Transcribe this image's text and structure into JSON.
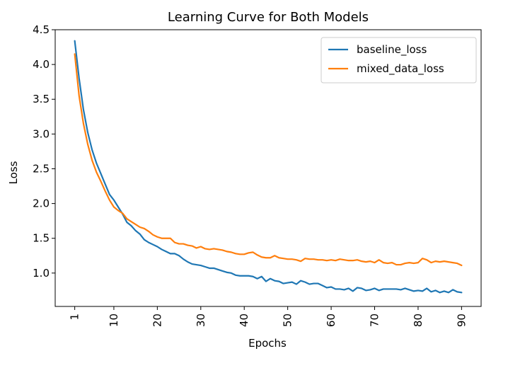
{
  "chart_data": {
    "type": "line",
    "title": "Learning Curve for Both Models",
    "xlabel": "Epochs",
    "ylabel": "Loss",
    "xlim": [
      -3.5,
      94.5
    ],
    "ylim": [
      0.52,
      4.5
    ],
    "xticks": [
      1,
      10,
      20,
      30,
      40,
      50,
      60,
      70,
      80,
      90
    ],
    "yticks": [
      1.0,
      1.5,
      2.0,
      2.5,
      3.0,
      3.5,
      4.0,
      4.5
    ],
    "ytick_labels": [
      "1.0",
      "1.5",
      "2.0",
      "2.5",
      "3.0",
      "3.5",
      "4.0",
      "4.5"
    ],
    "legend_position": "top-right",
    "grid": false,
    "x": [
      1,
      2,
      3,
      4,
      5,
      6,
      7,
      8,
      9,
      10,
      11,
      12,
      13,
      14,
      15,
      16,
      17,
      18,
      19,
      20,
      21,
      22,
      23,
      24,
      25,
      26,
      27,
      28,
      29,
      30,
      31,
      32,
      33,
      34,
      35,
      36,
      37,
      38,
      39,
      40,
      41,
      42,
      43,
      44,
      45,
      46,
      47,
      48,
      49,
      50,
      51,
      52,
      53,
      54,
      55,
      56,
      57,
      58,
      59,
      60,
      61,
      62,
      63,
      64,
      65,
      66,
      67,
      68,
      69,
      70,
      71,
      72,
      73,
      74,
      75,
      76,
      77,
      78,
      79,
      80,
      81,
      82,
      83,
      84,
      85,
      86,
      87,
      88,
      89,
      90
    ],
    "series": [
      {
        "name": "baseline_loss",
        "color": "#1f77b4",
        "values": [
          4.34,
          3.8,
          3.35,
          3.02,
          2.77,
          2.58,
          2.43,
          2.28,
          2.13,
          2.05,
          1.95,
          1.85,
          1.73,
          1.68,
          1.61,
          1.56,
          1.48,
          1.44,
          1.41,
          1.38,
          1.34,
          1.31,
          1.28,
          1.28,
          1.25,
          1.2,
          1.16,
          1.13,
          1.12,
          1.11,
          1.09,
          1.07,
          1.07,
          1.05,
          1.03,
          1.01,
          1.0,
          0.97,
          0.96,
          0.96,
          0.96,
          0.95,
          0.92,
          0.95,
          0.88,
          0.92,
          0.89,
          0.88,
          0.85,
          0.86,
          0.87,
          0.84,
          0.89,
          0.87,
          0.84,
          0.85,
          0.85,
          0.82,
          0.79,
          0.8,
          0.77,
          0.77,
          0.76,
          0.78,
          0.74,
          0.79,
          0.78,
          0.75,
          0.76,
          0.78,
          0.75,
          0.77,
          0.77,
          0.77,
          0.77,
          0.76,
          0.78,
          0.76,
          0.74,
          0.75,
          0.74,
          0.78,
          0.73,
          0.75,
          0.72,
          0.74,
          0.72,
          0.76,
          0.73,
          0.72
        ]
      },
      {
        "name": "mixed_data_loss",
        "color": "#ff7f0e",
        "values": [
          4.15,
          3.55,
          3.15,
          2.85,
          2.62,
          2.45,
          2.32,
          2.18,
          2.05,
          1.95,
          1.9,
          1.86,
          1.78,
          1.74,
          1.7,
          1.66,
          1.64,
          1.6,
          1.55,
          1.52,
          1.5,
          1.5,
          1.5,
          1.44,
          1.42,
          1.42,
          1.4,
          1.39,
          1.36,
          1.38,
          1.35,
          1.34,
          1.35,
          1.34,
          1.33,
          1.31,
          1.3,
          1.28,
          1.27,
          1.27,
          1.29,
          1.3,
          1.26,
          1.23,
          1.22,
          1.22,
          1.25,
          1.22,
          1.21,
          1.2,
          1.2,
          1.19,
          1.17,
          1.21,
          1.2,
          1.2,
          1.19,
          1.19,
          1.18,
          1.19,
          1.18,
          1.2,
          1.19,
          1.18,
          1.18,
          1.19,
          1.17,
          1.16,
          1.17,
          1.15,
          1.19,
          1.15,
          1.14,
          1.15,
          1.12,
          1.12,
          1.14,
          1.15,
          1.14,
          1.15,
          1.21,
          1.19,
          1.15,
          1.17,
          1.16,
          1.17,
          1.16,
          1.15,
          1.14,
          1.11
        ]
      }
    ]
  }
}
